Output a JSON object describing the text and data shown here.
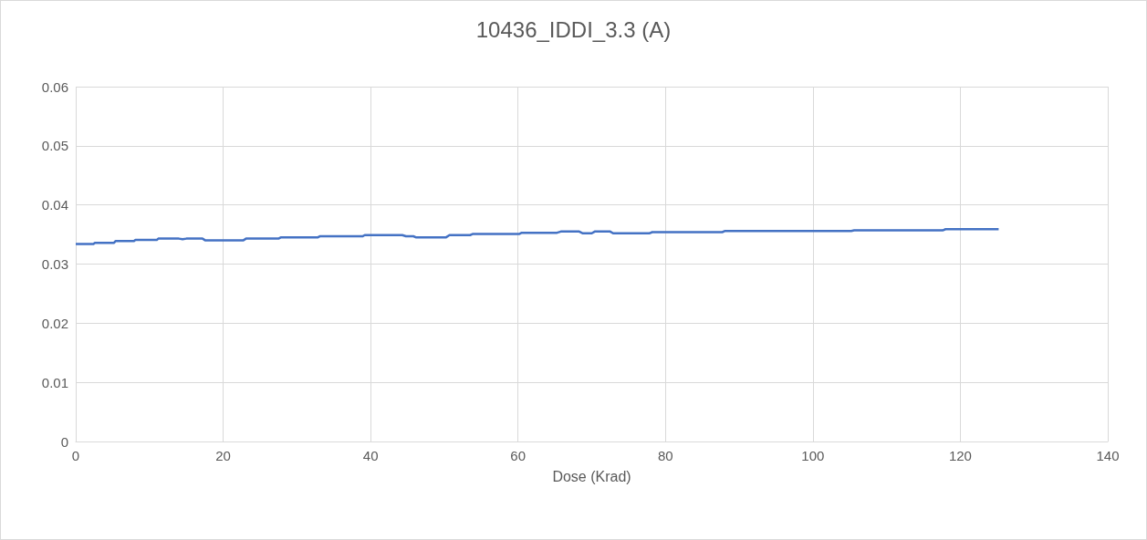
{
  "chart_data": {
    "type": "line",
    "title": "10436_IDDI_3.3 (A)",
    "xlabel": "Dose (Krad)",
    "x": [
      0,
      2.4,
      2.6,
      5.2,
      5.4,
      7.9,
      8.1,
      11,
      11.2,
      14,
      14.5,
      15,
      15.5,
      17.2,
      17.6,
      22.7,
      23.1,
      27.5,
      27.8,
      32.8,
      33.1,
      38.9,
      39.2,
      44.3,
      44.8,
      45.8,
      46.2,
      50.2,
      50.7,
      53.5,
      53.9,
      60.2,
      60.5,
      65.3,
      65.8,
      68.3,
      68.8,
      70,
      70.4,
      72.5,
      72.9,
      77.8,
      78.2,
      87.7,
      88.1,
      105.2,
      105.6,
      117.6,
      118,
      125.2
    ],
    "values": [
      0.0334,
      0.0334,
      0.0336,
      0.0336,
      0.0339,
      0.0339,
      0.0341,
      0.0341,
      0.0343,
      0.0343,
      0.0342,
      0.0343,
      0.0343,
      0.0343,
      0.034,
      0.034,
      0.0343,
      0.0343,
      0.0345,
      0.0345,
      0.0347,
      0.0347,
      0.0349,
      0.0349,
      0.0347,
      0.0347,
      0.0345,
      0.0345,
      0.0349,
      0.0349,
      0.0351,
      0.0351,
      0.0353,
      0.0353,
      0.0355,
      0.0355,
      0.0352,
      0.0352,
      0.0355,
      0.0355,
      0.0352,
      0.0352,
      0.0354,
      0.0354,
      0.0356,
      0.0356,
      0.0357,
      0.0357,
      0.0359,
      0.0359
    ],
    "color": "#4472c4",
    "xlim": [
      0,
      140
    ],
    "xticks": [
      0,
      20,
      40,
      60,
      80,
      100,
      120,
      140
    ],
    "ylim": [
      0,
      0.06
    ],
    "yticks": [
      0,
      0.01,
      0.02,
      0.03,
      0.04,
      0.05,
      0.06
    ],
    "grid": true,
    "marker": "none",
    "line_style": "solid"
  }
}
